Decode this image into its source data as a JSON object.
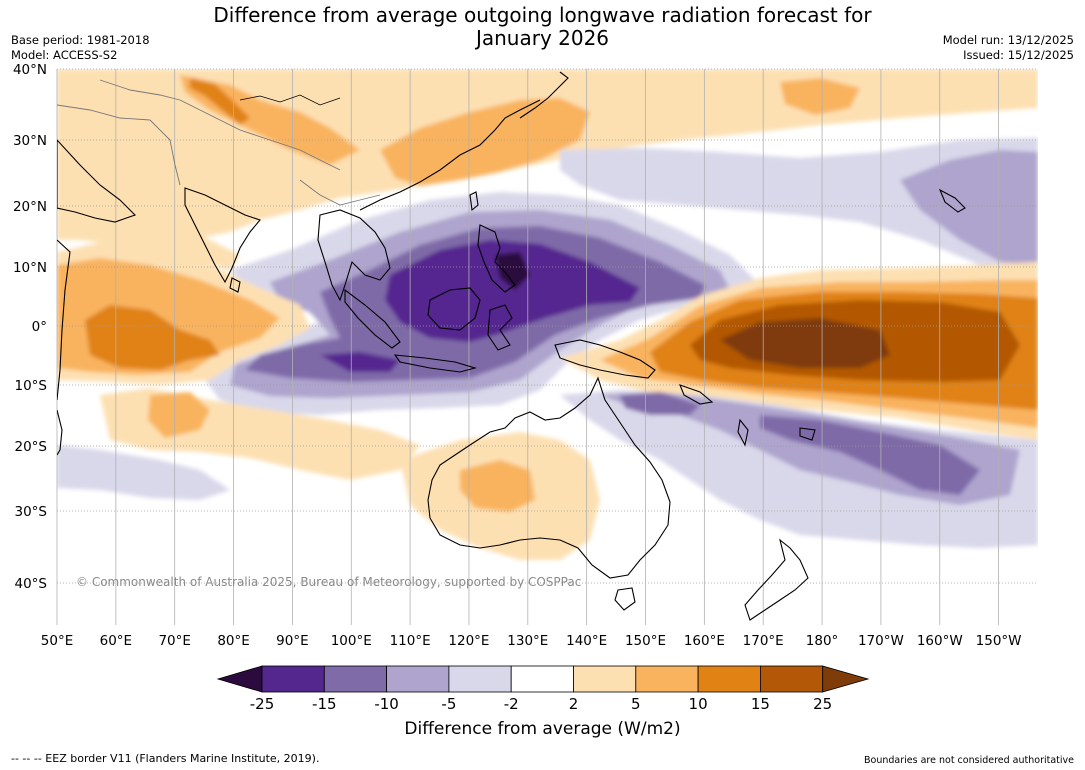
{
  "header": {
    "title_line1": "Difference from average outgoing longwave radiation forecast for",
    "title_line2": "January 2026",
    "base_period": "Base period: 1981-2018",
    "model": "Model: ACCESS-S2",
    "model_run": "Model run: 13/12/2025",
    "issued": "Issued: 15/12/2025"
  },
  "map": {
    "lat_labels": [
      "40°N",
      "30°N",
      "20°N",
      "10°N",
      "0°",
      "10°S",
      "20°S",
      "30°S",
      "40°S"
    ],
    "lon_labels": [
      "50°E",
      "60°E",
      "70°E",
      "80°E",
      "90°E",
      "100°E",
      "110°E",
      "120°E",
      "130°E",
      "140°E",
      "150°E",
      "160°E",
      "170°E",
      "180°",
      "170°W",
      "160°W",
      "150°W"
    ],
    "copyright": "© Commonwealth of Australia 2025, Bureau of Meteorology, supported by COSPPac"
  },
  "colorbar": {
    "ticks": [
      "-25",
      "-15",
      "-10",
      "-5",
      "-2",
      "2",
      "5",
      "10",
      "15",
      "25"
    ],
    "colors": [
      "#2b0a3d",
      "#54278f",
      "#7f6ba8",
      "#aea4cd",
      "#d9d8ea",
      "#ffffff",
      "#fde0b2",
      "#f9b35e",
      "#e08214",
      "#b35806",
      "#7f3b08"
    ],
    "label": "Difference from average (W/m2)"
  },
  "footer": {
    "eez": "--  --  -- EEZ border V11 (Flanders Marine Institute, 2019).",
    "boundaries": "Boundaries are not considered authoritative"
  }
}
